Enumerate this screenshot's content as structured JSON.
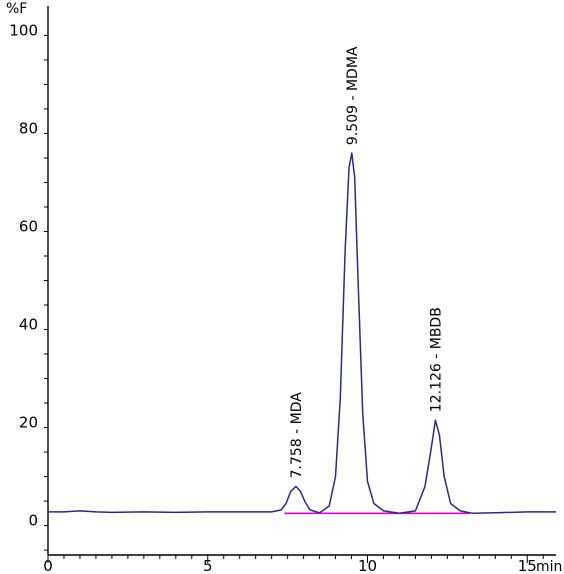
{
  "chart_data": {
    "type": "line",
    "title": "",
    "xlabel": "min",
    "ylabel": "%F",
    "xlim": [
      0,
      15.9
    ],
    "ylim": [
      -7,
      105
    ],
    "x_ticks": [
      0,
      5,
      10,
      15
    ],
    "y_ticks": [
      0,
      20,
      40,
      60,
      80,
      100
    ],
    "x_tick_labels": [
      "0",
      "5",
      "10",
      "15"
    ],
    "y_tick_labels": [
      "0",
      "20",
      "40",
      "60",
      "80",
      "100"
    ],
    "grid": false,
    "legend": "none",
    "colors": {
      "signal": "#2b2b80",
      "baseline": "#e000e0",
      "axis": "#000000"
    },
    "series": [
      {
        "x": [
          0.0,
          0.5,
          1.0,
          1.5,
          2.0,
          3.0,
          4.0,
          5.0,
          6.0,
          7.0,
          7.3,
          7.45,
          7.6,
          7.758,
          7.9,
          8.05,
          8.2,
          8.5,
          8.8,
          9.0,
          9.15,
          9.3,
          9.42,
          9.509,
          9.6,
          9.7,
          9.85,
          10.0,
          10.2,
          10.5,
          11.0,
          11.5,
          11.8,
          12.0,
          12.126,
          12.25,
          12.4,
          12.6,
          12.9,
          13.3,
          14.0,
          15.0,
          15.9
        ],
        "y": [
          1.8,
          1.8,
          2.0,
          1.8,
          1.7,
          1.8,
          1.7,
          1.8,
          1.8,
          1.8,
          2.2,
          3.5,
          6.0,
          7.0,
          6.0,
          3.8,
          2.2,
          1.6,
          3.0,
          9.0,
          25.0,
          55.0,
          72.0,
          75.0,
          70.0,
          50.0,
          22.0,
          8.0,
          3.5,
          2.0,
          1.5,
          2.0,
          7.0,
          15.0,
          20.5,
          17.5,
          9.0,
          3.5,
          2.0,
          1.5,
          1.6,
          1.8,
          1.8
        ]
      }
    ],
    "baseline": {
      "x": [
        7.4,
        13.2
      ],
      "y": [
        1.5,
        1.5
      ]
    },
    "peaks": [
      {
        "rt": 7.758,
        "height": 7.0,
        "label": "7.758 -  MDA"
      },
      {
        "rt": 9.509,
        "height": 75.0,
        "label": "9.509 -  MDMA"
      },
      {
        "rt": 12.126,
        "height": 20.5,
        "label": "12.126 -  MBDB"
      }
    ]
  }
}
